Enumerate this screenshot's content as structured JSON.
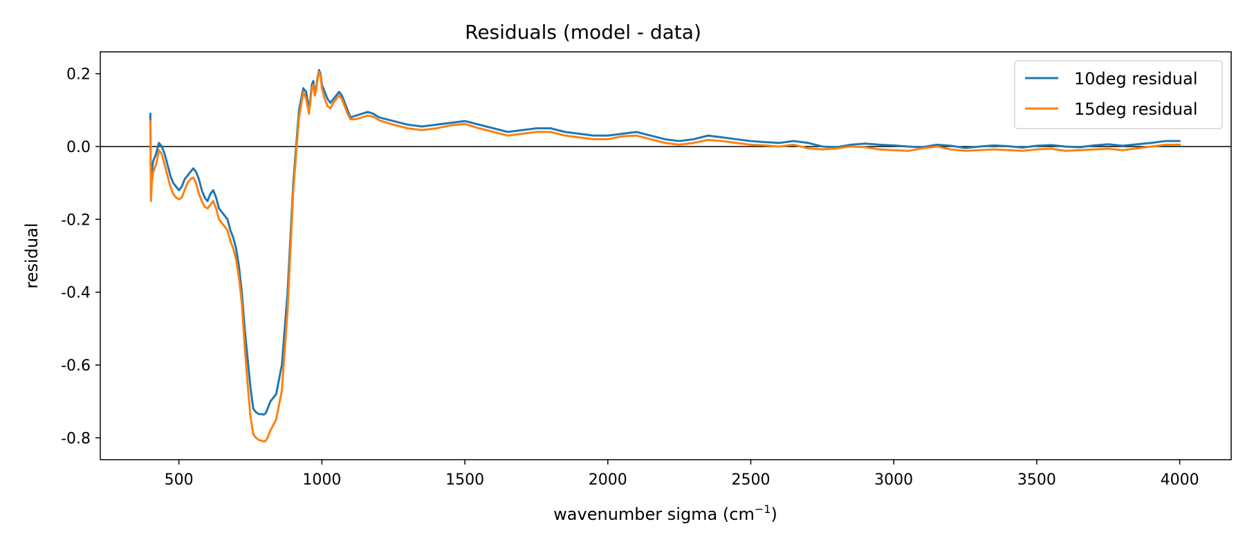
{
  "chart_data": {
    "type": "line",
    "title": "Residuals (model - data)",
    "xlabel_text": "wavenumber sigma (cm",
    "xlabel_sup": "−1",
    "xlabel_close": ")",
    "ylabel": "residual",
    "xlim": [
      225,
      4180
    ],
    "ylim": [
      -0.86,
      0.26
    ],
    "xticks": [
      500,
      1000,
      1500,
      2000,
      2500,
      3000,
      3500,
      4000
    ],
    "xtick_labels": [
      "500",
      "1000",
      "1500",
      "2000",
      "2500",
      "3000",
      "3500",
      "4000"
    ],
    "yticks": [
      0.2,
      0.0,
      -0.2,
      -0.4,
      -0.6,
      -0.8
    ],
    "ytick_labels": [
      "0.2",
      "0.0",
      "-0.2",
      "-0.4",
      "-0.6",
      "-0.8"
    ],
    "hline": 0.0,
    "grid": false,
    "legend_position": "top-right",
    "series": [
      {
        "name": "10deg residual",
        "color": "#1f77b4",
        "x": [
          400,
          402,
          405,
          410,
          420,
          430,
          440,
          450,
          460,
          470,
          480,
          490,
          500,
          510,
          520,
          530,
          540,
          550,
          560,
          570,
          580,
          590,
          600,
          610,
          620,
          630,
          640,
          650,
          660,
          670,
          680,
          690,
          700,
          710,
          720,
          730,
          740,
          750,
          760,
          770,
          780,
          790,
          795,
          800,
          805,
          810,
          820,
          840,
          860,
          880,
          900,
          920,
          935,
          945,
          955,
          965,
          970,
          975,
          980,
          985,
          990,
          995,
          1000,
          1010,
          1020,
          1030,
          1040,
          1050,
          1060,
          1070,
          1080,
          1090,
          1100,
          1120,
          1140,
          1160,
          1180,
          1200,
          1250,
          1300,
          1350,
          1400,
          1450,
          1500,
          1550,
          1600,
          1650,
          1700,
          1750,
          1800,
          1850,
          1900,
          1950,
          2000,
          2050,
          2100,
          2150,
          2200,
          2250,
          2300,
          2350,
          2400,
          2450,
          2500,
          2550,
          2600,
          2650,
          2700,
          2750,
          2800,
          2850,
          2900,
          2950,
          3000,
          3050,
          3100,
          3150,
          3200,
          3250,
          3300,
          3350,
          3400,
          3450,
          3500,
          3550,
          3600,
          3650,
          3700,
          3750,
          3800,
          3850,
          3900,
          3950,
          4000
        ],
        "y": [
          0.09,
          -0.1,
          -0.07,
          -0.04,
          -0.02,
          0.01,
          0.0,
          -0.02,
          -0.05,
          -0.08,
          -0.1,
          -0.11,
          -0.12,
          -0.11,
          -0.09,
          -0.08,
          -0.07,
          -0.06,
          -0.07,
          -0.09,
          -0.12,
          -0.14,
          -0.15,
          -0.13,
          -0.12,
          -0.14,
          -0.17,
          -0.18,
          -0.19,
          -0.2,
          -0.23,
          -0.25,
          -0.28,
          -0.33,
          -0.4,
          -0.5,
          -0.58,
          -0.66,
          -0.72,
          -0.73,
          -0.735,
          -0.735,
          -0.736,
          -0.735,
          -0.73,
          -0.72,
          -0.7,
          -0.68,
          -0.6,
          -0.4,
          -0.1,
          0.1,
          0.16,
          0.15,
          0.1,
          0.17,
          0.18,
          0.15,
          0.16,
          0.19,
          0.21,
          0.2,
          0.17,
          0.15,
          0.13,
          0.12,
          0.13,
          0.14,
          0.15,
          0.14,
          0.12,
          0.1,
          0.08,
          0.085,
          0.09,
          0.095,
          0.09,
          0.08,
          0.07,
          0.06,
          0.055,
          0.06,
          0.065,
          0.07,
          0.06,
          0.05,
          0.04,
          0.045,
          0.05,
          0.05,
          0.04,
          0.035,
          0.03,
          0.03,
          0.035,
          0.04,
          0.03,
          0.02,
          0.015,
          0.02,
          0.03,
          0.025,
          0.02,
          0.015,
          0.012,
          0.01,
          0.015,
          0.01,
          0.0,
          -0.002,
          0.005,
          0.008,
          0.005,
          0.003,
          0.0,
          -0.002,
          0.005,
          0.002,
          -0.004,
          0.0,
          0.003,
          0.001,
          -0.003,
          0.002,
          0.004,
          0.0,
          -0.002,
          0.003,
          0.006,
          0.002,
          0.006,
          0.01,
          0.015,
          0.015
        ],
        "x_fix_note_removed": true
      },
      {
        "name": "15deg residual",
        "color": "#ff7f0e",
        "x": [
          400,
          402,
          405,
          410,
          420,
          430,
          440,
          450,
          460,
          470,
          480,
          490,
          500,
          510,
          520,
          530,
          540,
          550,
          560,
          570,
          580,
          590,
          600,
          610,
          620,
          630,
          640,
          650,
          660,
          670,
          680,
          690,
          700,
          710,
          720,
          730,
          740,
          750,
          760,
          770,
          780,
          790,
          795,
          800,
          805,
          810,
          820,
          840,
          860,
          880,
          900,
          920,
          935,
          945,
          955,
          965,
          970,
          975,
          980,
          985,
          990,
          995,
          1000,
          1010,
          1020,
          1030,
          1040,
          1050,
          1060,
          1070,
          1080,
          1090,
          1100,
          1120,
          1140,
          1160,
          1180,
          1200,
          1250,
          1300,
          1350,
          1400,
          1450,
          1500,
          1550,
          1600,
          1650,
          1700,
          1750,
          1800,
          1850,
          1900,
          1950,
          2000,
          2050,
          2100,
          2150,
          2200,
          2250,
          2300,
          2350,
          2400,
          2450,
          2500,
          2550,
          2600,
          2650,
          2700,
          2750,
          2800,
          2850,
          2900,
          2950,
          3000,
          3050,
          3100,
          3150,
          3200,
          3250,
          3300,
          3350,
          3400,
          3450,
          3500,
          3550,
          3600,
          3650,
          3700,
          3750,
          3800,
          3850,
          3900,
          3950,
          4000
        ],
        "y": [
          0.07,
          -0.15,
          -0.1,
          -0.07,
          -0.05,
          -0.01,
          -0.02,
          -0.05,
          -0.08,
          -0.11,
          -0.13,
          -0.14,
          -0.145,
          -0.14,
          -0.12,
          -0.1,
          -0.09,
          -0.085,
          -0.1,
          -0.13,
          -0.15,
          -0.165,
          -0.17,
          -0.16,
          -0.15,
          -0.17,
          -0.2,
          -0.21,
          -0.22,
          -0.23,
          -0.26,
          -0.28,
          -0.31,
          -0.36,
          -0.43,
          -0.55,
          -0.65,
          -0.74,
          -0.79,
          -0.8,
          -0.806,
          -0.808,
          -0.81,
          -0.81,
          -0.806,
          -0.8,
          -0.78,
          -0.75,
          -0.67,
          -0.45,
          -0.12,
          0.08,
          0.15,
          0.13,
          0.09,
          0.16,
          0.17,
          0.14,
          0.155,
          0.185,
          0.205,
          0.195,
          0.16,
          0.13,
          0.11,
          0.105,
          0.12,
          0.13,
          0.14,
          0.13,
          0.11,
          0.09,
          0.075,
          0.075,
          0.08,
          0.085,
          0.082,
          0.072,
          0.06,
          0.05,
          0.045,
          0.05,
          0.058,
          0.062,
          0.05,
          0.04,
          0.03,
          0.035,
          0.04,
          0.04,
          0.03,
          0.025,
          0.02,
          0.02,
          0.028,
          0.03,
          0.02,
          0.01,
          0.005,
          0.01,
          0.018,
          0.015,
          0.01,
          0.005,
          0.003,
          0.0,
          0.005,
          -0.005,
          -0.008,
          -0.005,
          0.0,
          -0.002,
          -0.008,
          -0.01,
          -0.012,
          -0.005,
          0.0,
          -0.008,
          -0.012,
          -0.01,
          -0.008,
          -0.01,
          -0.012,
          -0.008,
          -0.006,
          -0.012,
          -0.01,
          -0.008,
          -0.006,
          -0.01,
          -0.005,
          0.0,
          0.005,
          0.005
        ]
      }
    ]
  }
}
